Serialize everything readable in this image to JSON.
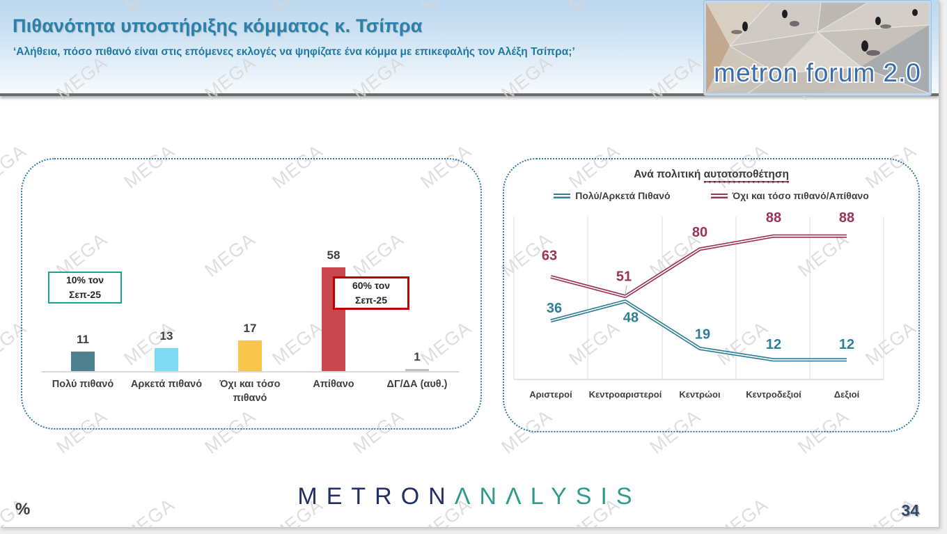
{
  "header": {
    "title": "Πιθανότητα υποστήριξης κόμματος κ. Τσίπρα",
    "subtitle": "‘Αλήθεια, πόσο πιθανό είναι στις επόμενες εκλογές να ψηφίζατε ένα κόμμα με επικεφαλής τον Αλέξη Τσίπρα;’",
    "logo_text": "metron forum 2.0"
  },
  "watermark": {
    "text": "MEGA"
  },
  "chart_data": [
    {
      "type": "bar",
      "panel": "left",
      "title": "",
      "categories": [
        "Πολύ πιθανό",
        "Αρκετά πιθανό",
        "Όχι και τόσο πιθανό",
        "Απίθανο",
        "ΔΓ/ΔΑ (αυθ.)"
      ],
      "values": [
        11,
        13,
        17,
        58,
        1
      ],
      "bar_colors": [
        "#4E7F8F",
        "#7ED9F2",
        "#FAC64E",
        "#C9484F",
        "#BFBFBF"
      ],
      "ylim": [
        0,
        100
      ],
      "grid": "off",
      "annotations": [
        {
          "line1": "10% τον",
          "line2": "Σεπ-25",
          "border_color": "#17A38E",
          "anchor_category": "Πολύ πιθανό"
        },
        {
          "line1": "60% τον",
          "line2": "Σεπ-25",
          "border_color": "#C00000",
          "anchor_category": "Απίθανο"
        }
      ]
    },
    {
      "type": "line",
      "panel": "right",
      "title": "Ανά πολιτική αυτοτοποθέτηση",
      "title_prefix": "Ανά πολιτική ",
      "title_underlined": "αυτοτοποθέτηση",
      "categories": [
        "Αριστεροί",
        "Κεντροαριστεροί",
        "Κεντρώοι",
        "Κεντροδεξιοί",
        "Δεξιοί"
      ],
      "series": [
        {
          "name": "Πολύ/Αρκετά Πιθανό",
          "values": [
            36,
            48,
            19,
            12,
            12
          ],
          "color": "#2E7F96"
        },
        {
          "name": "Όχι και τόσο πιθανό/Απίθανο",
          "values": [
            63,
            51,
            80,
            88,
            88
          ],
          "color": "#9C3159"
        }
      ],
      "ylim": [
        0,
        100
      ],
      "legend_position": "top",
      "grid": "vertical-gridlines"
    }
  ],
  "footer": {
    "brand_left": "METRON",
    "brand_right": "ΛNΛLYSIS",
    "percent_symbol": "%",
    "page_number": "34"
  }
}
